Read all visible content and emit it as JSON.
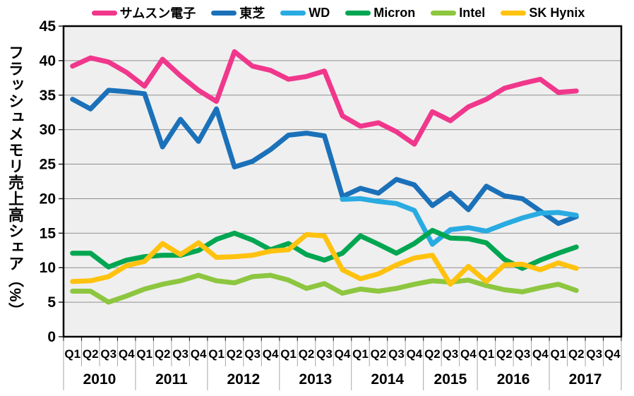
{
  "styles": {
    "plot_bg": "#EFEFEF",
    "grid_color": "#8F8F8F",
    "separator_color": "#A6A6A6",
    "axis_color": "#000000",
    "text_color": "#000000"
  },
  "axes": {
    "y_title": "フラッシュメモリ売上高シェア（%）"
  },
  "chart_data": {
    "type": "line",
    "title": "",
    "ylabel": "フラッシュメモリ売上高シェア（%）",
    "xlabel": "",
    "ylim": [
      0,
      45
    ],
    "ytick_step": 5,
    "grid": true,
    "legend_position": "top",
    "quarters": [
      "Q1",
      "Q2",
      "Q3",
      "Q4",
      "Q1",
      "Q2",
      "Q3",
      "Q4",
      "Q1",
      "Q2",
      "Q3",
      "Q4",
      "Q1",
      "Q2",
      "Q3",
      "Q4",
      "Q1",
      "Q2",
      "Q3",
      "Q4",
      "Q2",
      "Q3",
      "Q4",
      "Q1",
      "Q2",
      "Q3",
      "Q4",
      "Q1",
      "Q2",
      "Q3",
      "Q4"
    ],
    "year_groups": [
      {
        "label": "2010",
        "span": 4
      },
      {
        "label": "2011",
        "span": 4
      },
      {
        "label": "2012",
        "span": 4
      },
      {
        "label": "2013",
        "span": 4
      },
      {
        "label": "2014",
        "span": 4
      },
      {
        "label": "2015",
        "span": 3
      },
      {
        "label": "2016",
        "span": 4
      },
      {
        "label": "2017",
        "span": 4
      }
    ],
    "series": [
      {
        "name": "サムスン電子",
        "color": "#F0378C",
        "values": [
          39.2,
          40.4,
          39.8,
          38.3,
          36.3,
          40.2,
          37.8,
          35.7,
          34.1,
          41.3,
          39.2,
          38.6,
          37.3,
          37.7,
          38.5,
          32.0,
          30.5,
          31.0,
          29.7,
          27.9,
          32.6,
          31.3,
          33.3,
          34.4,
          36.0,
          36.7,
          37.3,
          35.4,
          35.6,
          null,
          null
        ]
      },
      {
        "name": "東芝",
        "color": "#1B71B9",
        "values": [
          34.4,
          33.0,
          35.7,
          35.5,
          35.2,
          27.5,
          31.5,
          28.3,
          33.0,
          24.6,
          25.4,
          27.1,
          29.2,
          29.5,
          29.1,
          20.3,
          21.5,
          20.8,
          22.8,
          22.0,
          19.0,
          20.8,
          18.4,
          21.8,
          20.4,
          20.0,
          18.2,
          16.4,
          17.4,
          null,
          null
        ]
      },
      {
        "name": "WD",
        "color": "#29ABE2",
        "values": [
          null,
          null,
          null,
          null,
          null,
          null,
          null,
          null,
          null,
          null,
          null,
          null,
          null,
          null,
          null,
          19.9,
          20.0,
          19.6,
          19.3,
          18.3,
          13.4,
          15.5,
          15.8,
          15.3,
          16.3,
          17.2,
          17.9,
          18.0,
          17.6,
          null,
          null
        ]
      },
      {
        "name": "Micron",
        "color": "#00A651",
        "values": [
          12.1,
          12.1,
          10.1,
          11.1,
          11.6,
          11.8,
          11.8,
          12.5,
          14.1,
          15.0,
          14.0,
          12.6,
          13.5,
          11.9,
          11.1,
          12.1,
          14.6,
          13.4,
          12.1,
          13.5,
          15.4,
          14.3,
          14.2,
          13.6,
          11.2,
          9.9,
          11.1,
          12.1,
          13.0,
          null,
          null
        ]
      },
      {
        "name": "Intel",
        "color": "#8DC63F",
        "values": [
          6.6,
          6.6,
          5.0,
          5.9,
          6.9,
          7.6,
          8.1,
          8.9,
          8.1,
          7.8,
          8.7,
          8.9,
          8.2,
          7.0,
          7.7,
          6.3,
          6.9,
          6.6,
          7.0,
          7.6,
          8.1,
          7.9,
          8.2,
          7.4,
          6.8,
          6.5,
          7.1,
          7.6,
          6.7,
          null,
          null
        ]
      },
      {
        "name": "SK Hynix",
        "color": "#FFC20E",
        "values": [
          8.0,
          8.1,
          8.7,
          10.3,
          10.9,
          13.5,
          11.9,
          13.6,
          11.5,
          11.6,
          11.8,
          12.4,
          12.6,
          14.8,
          14.6,
          9.7,
          8.4,
          9.1,
          10.4,
          11.4,
          11.8,
          7.6,
          10.2,
          8.0,
          10.4,
          10.5,
          9.7,
          10.7,
          9.9,
          null,
          null
        ]
      }
    ]
  }
}
